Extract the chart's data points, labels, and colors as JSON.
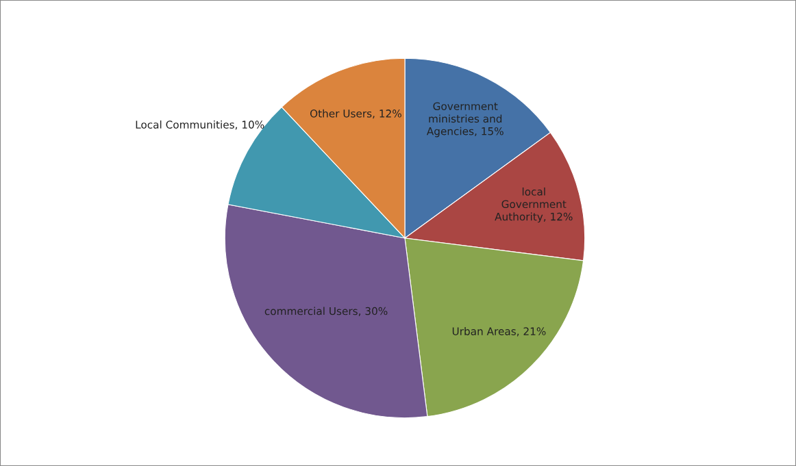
{
  "chart_data": {
    "type": "pie",
    "categories": [
      "Government\nministries and\nAgencies",
      "local\nGovernment\nAuthority",
      "Urban Areas",
      "commercial Users",
      "Local Communities",
      "Other Users"
    ],
    "values": [
      15,
      12,
      21,
      30,
      10,
      12
    ],
    "value_labels": [
      "15%",
      "12%",
      "21%",
      "30%",
      "10%",
      "12%"
    ],
    "colors": [
      "#4572a7",
      "#aa4643",
      "#89a54e",
      "#71588f",
      "#4198af",
      "#db843d"
    ],
    "legend": false
  }
}
